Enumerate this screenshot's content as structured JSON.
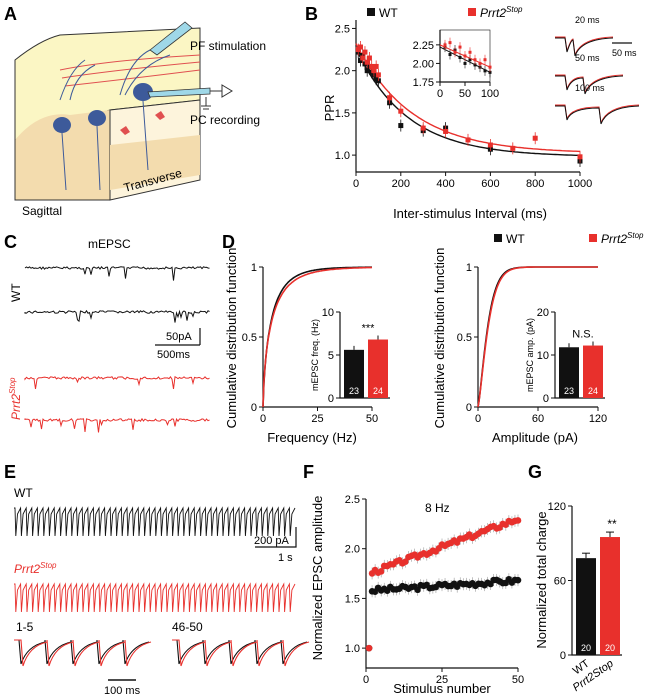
{
  "colors": {
    "wt": "#111111",
    "mut": "#e8302c",
    "beige": "#f3dcae",
    "blue": "#3d5a9a",
    "yellow": "#fbf6c4"
  },
  "panel_letters": [
    "A",
    "B",
    "C",
    "D",
    "E",
    "F",
    "G"
  ],
  "panelA": {
    "pf_label": "PF stimulation",
    "pc_label": "PC recording",
    "sagittal": "Sagittal",
    "transverse": "Transverse"
  },
  "panelC": {
    "title": "mEPSC",
    "wt": "WT",
    "mut": "Prrt2",
    "mut_sup": "Stop",
    "scale_y": "50pA",
    "scale_x": "500ms"
  },
  "panelE": {
    "wt": "WT",
    "mut": "Prrt2",
    "mut_sup": "Stop",
    "scale_y": "200 pA",
    "scale_x": "1 s",
    "zoom1": "1-5",
    "zoom2": "46-50",
    "zoom_scale": "100 ms"
  },
  "legend": {
    "wt": "WT",
    "mut": "Prrt2",
    "mut_sup": "Stop"
  },
  "chart_data": [
    {
      "id": "B",
      "type": "scatter",
      "xlabel": "Inter-stimulus Interval (ms)",
      "ylabel": "PPR",
      "xlim": [
        0,
        1000
      ],
      "ylim": [
        0.8,
        2.6
      ],
      "xticks": [
        0,
        200,
        400,
        600,
        800,
        1000
      ],
      "yticks": [
        1.0,
        1.5,
        2.0,
        2.5
      ],
      "series": [
        {
          "name": "WT",
          "x": [
            10,
            20,
            30,
            40,
            50,
            60,
            70,
            80,
            90,
            100,
            150,
            200,
            300,
            400,
            600,
            1000
          ],
          "y": [
            2.22,
            2.12,
            2.18,
            2.08,
            2.0,
            2.05,
            1.98,
            1.95,
            1.9,
            1.88,
            1.62,
            1.35,
            1.29,
            1.32,
            1.07,
            0.93
          ]
        },
        {
          "name": "Prrt2Stop",
          "x": [
            10,
            20,
            30,
            40,
            50,
            60,
            70,
            80,
            90,
            100,
            150,
            200,
            300,
            400,
            500,
            600,
            700,
            800,
            1000
          ],
          "y": [
            2.25,
            2.28,
            2.15,
            2.22,
            2.1,
            2.15,
            2.05,
            2.0,
            2.05,
            1.95,
            1.68,
            1.52,
            1.32,
            1.28,
            1.18,
            1.12,
            1.08,
            1.2,
            0.98
          ]
        }
      ],
      "inset": {
        "xlim": [
          0,
          100
        ],
        "ylim": [
          1.75,
          2.45
        ],
        "xticks": [
          0,
          50,
          100
        ],
        "yticks": [
          1.75,
          2.0,
          2.25
        ]
      },
      "traces": [
        "20 ms",
        "50 ms",
        "100 ms"
      ],
      "trace_scale": "50 ms"
    },
    {
      "id": "D1",
      "type": "line",
      "xlabel": "Frequency (Hz)",
      "ylabel": "Cumulative distribution function",
      "xlim": [
        0,
        50
      ],
      "ylim": [
        0,
        1.0
      ],
      "xticks": [
        0,
        25,
        50
      ],
      "yticks": [
        0,
        0.5,
        1.0
      ],
      "inset": {
        "type": "bar",
        "ylabel": "mEPSC freq. (Hz)",
        "ylim": [
          0,
          10
        ],
        "yticks": [
          0,
          5,
          10
        ],
        "values": [
          5.6,
          6.8
        ],
        "n": [
          "23",
          "24"
        ],
        "sig": "***"
      }
    },
    {
      "id": "D2",
      "type": "line",
      "xlabel": "Amplitude (pA)",
      "ylabel": "Cumulative distribution function",
      "xlim": [
        0,
        120
      ],
      "ylim": [
        0,
        1.0
      ],
      "xticks": [
        0,
        60,
        120
      ],
      "yticks": [
        0,
        0.5,
        1.0
      ],
      "inset": {
        "type": "bar",
        "ylabel": "mEPSC amp. (pA)",
        "ylim": [
          0,
          20
        ],
        "yticks": [
          0,
          10,
          20
        ],
        "values": [
          11.8,
          12.2
        ],
        "n": [
          "23",
          "24"
        ],
        "sig": "N.S."
      }
    },
    {
      "id": "F",
      "type": "scatter",
      "title": "8 Hz",
      "xlabel": "Stimulus number",
      "ylabel": "Normalized EPSC amplitude",
      "xlim": [
        0,
        50
      ],
      "ylim": [
        0.8,
        2.5
      ],
      "xticks": [
        0,
        25,
        50
      ],
      "yticks": [
        1.0,
        1.5,
        2.0,
        2.5
      ],
      "series": [
        {
          "name": "WT",
          "start": 1.0,
          "from": 1.58,
          "to": 1.68
        },
        {
          "name": "Prrt2Stop",
          "start": 1.0,
          "from": 1.76,
          "to": 2.3
        }
      ]
    },
    {
      "id": "G",
      "type": "bar",
      "ylabel": "Normalized total charge",
      "ylim": [
        0,
        120
      ],
      "yticks": [
        0,
        60,
        120
      ],
      "categories": [
        "WT",
        "Prrt2Stop"
      ],
      "values": [
        78,
        95
      ],
      "errors": [
        4,
        4
      ],
      "n": [
        "20",
        "20"
      ],
      "sig": "**"
    }
  ]
}
